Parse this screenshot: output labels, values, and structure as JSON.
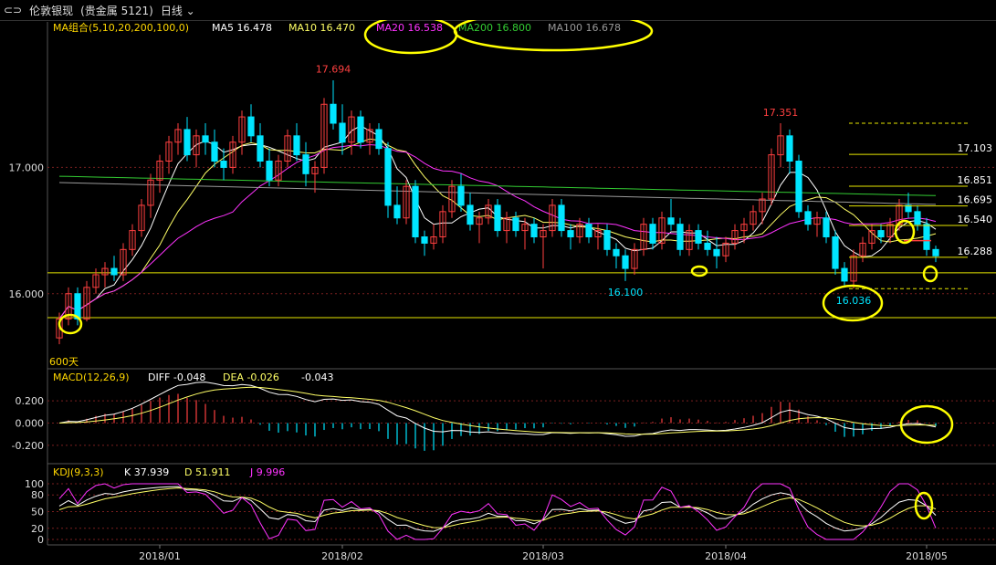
{
  "header": {
    "back_icon": "back-arrows-icon",
    "symbol": "伦敦银现",
    "market": "(贵金属 5121)",
    "period": "日线"
  },
  "main_legend": {
    "group": "MA组合(5,10,20,200,100,0)",
    "ma5": "MA5 16.478",
    "ma10": "MA10 16.470",
    "ma20": "MA20 16.538",
    "ma200": "MA200 16.800",
    "ma100": "MA100 16.678"
  },
  "macd_legend": {
    "title": "MACD(12,26,9)",
    "diff": "DIFF -0.048",
    "dea": "DEA -0.026",
    "macd": "-0.043"
  },
  "kdj_legend": {
    "title": "KDJ(9,3,3)",
    "k": "K 37.939",
    "d": "D 51.911",
    "j": "J 9.996"
  },
  "colors": {
    "up": "#ff4040",
    "down": "#00e5ff",
    "ma5": "#ffffff",
    "ma10": "#ffff66",
    "ma20": "#ff33ff",
    "ma200": "#33cc33",
    "ma100": "#999999",
    "level": "#e6e600",
    "highlight": "#ffff00"
  },
  "chart_data": [
    {
      "type": "candlestick",
      "title": "伦敦银现 日线",
      "x_ticks": [
        "2018/01",
        "2018/02",
        "2018/03",
        "2018/04",
        "2018/05"
      ],
      "y_ticks": [
        "17.000",
        "16.000"
      ],
      "ylim": [
        15.55,
        17.95
      ],
      "extremes": [
        {
          "label": "17.694",
          "value": 17.694
        },
        {
          "label": "17.351",
          "value": 17.351
        },
        {
          "label": "16.100",
          "value": 16.1
        },
        {
          "label": "16.036",
          "value": 16.036
        }
      ],
      "levels": [
        {
          "label": "17.103",
          "value": 17.103,
          "style": "solid"
        },
        {
          "label": "16.851",
          "value": 16.851,
          "style": "solid"
        },
        {
          "label": "16.695",
          "value": 16.695,
          "style": "solid"
        },
        {
          "label": "16.540",
          "value": 16.54,
          "style": "solid"
        },
        {
          "label": "16.288",
          "value": 16.288,
          "style": "solid"
        },
        {
          "label": "",
          "value": 17.35,
          "style": "dashed"
        },
        {
          "label": "",
          "value": 16.04,
          "style": "dashed"
        }
      ],
      "long_levels": [
        16.165,
        15.81
      ],
      "bottom_label": "600天",
      "ohlc": [
        [
          15.65,
          15.85,
          15.6,
          15.8
        ],
        [
          15.8,
          16.05,
          15.75,
          16.0
        ],
        [
          16.0,
          16.05,
          15.75,
          15.8
        ],
        [
          15.8,
          16.1,
          15.78,
          16.05
        ],
        [
          16.05,
          16.2,
          16.0,
          16.15
        ],
        [
          16.15,
          16.25,
          16.05,
          16.2
        ],
        [
          16.2,
          16.3,
          16.1,
          16.15
        ],
        [
          16.15,
          16.4,
          16.1,
          16.35
        ],
        [
          16.35,
          16.55,
          16.3,
          16.5
        ],
        [
          16.5,
          16.75,
          16.45,
          16.7
        ],
        [
          16.7,
          16.95,
          16.6,
          16.9
        ],
        [
          16.9,
          17.1,
          16.8,
          17.05
        ],
        [
          17.05,
          17.25,
          16.95,
          17.2
        ],
        [
          17.2,
          17.35,
          17.1,
          17.3
        ],
        [
          17.3,
          17.4,
          17.05,
          17.1
        ],
        [
          17.1,
          17.3,
          17.0,
          17.25
        ],
        [
          17.25,
          17.35,
          17.1,
          17.2
        ],
        [
          17.2,
          17.3,
          17.0,
          17.05
        ],
        [
          17.05,
          17.15,
          16.9,
          17.0
        ],
        [
          17.0,
          17.25,
          16.95,
          17.2
        ],
        [
          17.2,
          17.45,
          17.1,
          17.4
        ],
        [
          17.4,
          17.5,
          17.2,
          17.25
        ],
        [
          17.25,
          17.35,
          17.0,
          17.05
        ],
        [
          17.05,
          17.15,
          16.85,
          16.9
        ],
        [
          16.9,
          17.1,
          16.85,
          17.05
        ],
        [
          17.05,
          17.3,
          17.0,
          17.25
        ],
        [
          17.25,
          17.35,
          17.05,
          17.1
        ],
        [
          17.1,
          17.2,
          16.85,
          16.95
        ],
        [
          16.95,
          17.05,
          16.8,
          17.0
        ],
        [
          17.0,
          17.55,
          16.95,
          17.5
        ],
        [
          17.5,
          17.69,
          17.3,
          17.35
        ],
        [
          17.35,
          17.5,
          17.1,
          17.2
        ],
        [
          17.2,
          17.45,
          17.1,
          17.4
        ],
        [
          17.4,
          17.45,
          17.15,
          17.2
        ],
        [
          17.2,
          17.35,
          17.1,
          17.3
        ],
        [
          17.3,
          17.35,
          17.1,
          17.15
        ],
        [
          17.15,
          17.2,
          16.6,
          16.7
        ],
        [
          16.7,
          16.85,
          16.55,
          16.6
        ],
        [
          16.6,
          16.9,
          16.55,
          16.85
        ],
        [
          16.85,
          16.9,
          16.4,
          16.45
        ],
        [
          16.45,
          16.5,
          16.3,
          16.4
        ],
        [
          16.4,
          16.55,
          16.35,
          16.45
        ],
        [
          16.45,
          16.7,
          16.4,
          16.65
        ],
        [
          16.65,
          16.9,
          16.6,
          16.85
        ],
        [
          16.85,
          16.95,
          16.65,
          16.7
        ],
        [
          16.7,
          16.8,
          16.5,
          16.55
        ],
        [
          16.55,
          16.65,
          16.4,
          16.6
        ],
        [
          16.6,
          16.75,
          16.55,
          16.7
        ],
        [
          16.7,
          16.75,
          16.45,
          16.5
        ],
        [
          16.5,
          16.65,
          16.4,
          16.6
        ],
        [
          16.6,
          16.65,
          16.45,
          16.5
        ],
        [
          16.5,
          16.6,
          16.35,
          16.55
        ],
        [
          16.55,
          16.6,
          16.4,
          16.45
        ],
        [
          16.45,
          16.55,
          16.2,
          16.5
        ],
        [
          16.5,
          16.75,
          16.45,
          16.7
        ],
        [
          16.7,
          16.75,
          16.45,
          16.5
        ],
        [
          16.5,
          16.55,
          16.35,
          16.45
        ],
        [
          16.45,
          16.6,
          16.4,
          16.55
        ],
        [
          16.55,
          16.6,
          16.4,
          16.45
        ],
        [
          16.45,
          16.55,
          16.35,
          16.5
        ],
        [
          16.5,
          16.55,
          16.3,
          16.35
        ],
        [
          16.35,
          16.4,
          16.2,
          16.3
        ],
        [
          16.3,
          16.35,
          16.1,
          16.2
        ],
        [
          16.2,
          16.4,
          16.15,
          16.35
        ],
        [
          16.35,
          16.6,
          16.3,
          16.55
        ],
        [
          16.55,
          16.6,
          16.35,
          16.4
        ],
        [
          16.4,
          16.65,
          16.35,
          16.6
        ],
        [
          16.6,
          16.75,
          16.5,
          16.55
        ],
        [
          16.55,
          16.6,
          16.3,
          16.35
        ],
        [
          16.35,
          16.55,
          16.3,
          16.5
        ],
        [
          16.5,
          16.55,
          16.35,
          16.4
        ],
        [
          16.4,
          16.5,
          16.3,
          16.35
        ],
        [
          16.35,
          16.45,
          16.2,
          16.3
        ],
        [
          16.3,
          16.45,
          16.25,
          16.4
        ],
        [
          16.4,
          16.55,
          16.35,
          16.5
        ],
        [
          16.5,
          16.6,
          16.4,
          16.55
        ],
        [
          16.55,
          16.7,
          16.5,
          16.65
        ],
        [
          16.65,
          16.8,
          16.55,
          16.75
        ],
        [
          16.75,
          17.15,
          16.7,
          17.1
        ],
        [
          17.1,
          17.35,
          17.0,
          17.25
        ],
        [
          17.25,
          17.3,
          16.95,
          17.05
        ],
        [
          17.05,
          17.1,
          16.6,
          16.65
        ],
        [
          16.65,
          16.7,
          16.5,
          16.55
        ],
        [
          16.55,
          16.65,
          16.45,
          16.6
        ],
        [
          16.6,
          16.65,
          16.4,
          16.45
        ],
        [
          16.45,
          16.5,
          16.15,
          16.2
        ],
        [
          16.2,
          16.25,
          16.05,
          16.1
        ],
        [
          16.1,
          16.35,
          16.04,
          16.3
        ],
        [
          16.3,
          16.45,
          16.25,
          16.4
        ],
        [
          16.4,
          16.55,
          16.35,
          16.5
        ],
        [
          16.5,
          16.55,
          16.4,
          16.45
        ],
        [
          16.45,
          16.6,
          16.4,
          16.55
        ],
        [
          16.55,
          16.75,
          16.5,
          16.7
        ],
        [
          16.7,
          16.8,
          16.6,
          16.65
        ],
        [
          16.65,
          16.7,
          16.5,
          16.55
        ],
        [
          16.55,
          16.6,
          16.3,
          16.35
        ],
        [
          16.35,
          16.38,
          16.25,
          16.3
        ]
      ]
    },
    {
      "type": "bar",
      "title": "MACD(12,26,9)",
      "y_ticks": [
        "0.200",
        "0.000",
        "-0.200"
      ],
      "ylim": [
        -0.3,
        0.3
      ],
      "series_names": [
        "DIFF",
        "DEA",
        "MACD"
      ]
    },
    {
      "type": "line",
      "title": "KDJ(9,3,3)",
      "y_ticks": [
        "100",
        "80",
        "50",
        "20",
        "0"
      ],
      "ylim": [
        -5,
        105
      ],
      "series_names": [
        "K",
        "D",
        "J"
      ]
    }
  ],
  "x_axis": {
    "labels": [
      "2018/01",
      "2018/02",
      "2018/03",
      "2018/04",
      "2018/05"
    ]
  }
}
